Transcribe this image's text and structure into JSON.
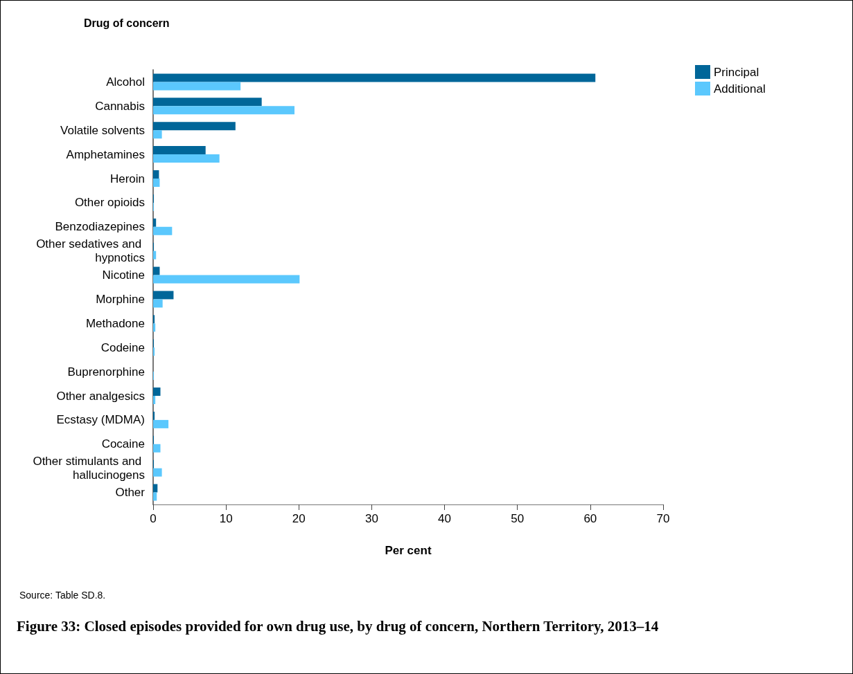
{
  "chart_data": {
    "type": "bar",
    "orientation": "horizontal",
    "title": "Figure 33: Closed episodes provided for own drug use, by drug of concern, Northern Territory, 2013–14",
    "ylabel": "Drug of concern",
    "xlabel": "Per cent",
    "categories": [
      "Alcohol",
      "Cannabis",
      "Volatile solvents",
      "Amphetamines",
      "Heroin",
      "Other opioids",
      "Benzodiazepines",
      "Other sedatives and hypnotics",
      "Nicotine",
      "Morphine",
      "Methadone",
      "Codeine",
      "Buprenorphine",
      "Other analgesics",
      "Ecstasy (MDMA)",
      "Cocaine",
      "Other stimulants and hallucinogens",
      "Other"
    ],
    "series": [
      {
        "name": "Principal",
        "color": "#006699",
        "values": [
          60.7,
          14.9,
          11.3,
          7.2,
          0.8,
          0.1,
          0.4,
          0.1,
          0.9,
          2.8,
          0.2,
          0.1,
          0,
          1.0,
          0.2,
          0.1,
          0.1,
          0.6
        ]
      },
      {
        "name": "Additional",
        "color": "#5bc8fd",
        "values": [
          12.0,
          19.4,
          1.2,
          9.1,
          0.9,
          0.1,
          2.6,
          0.4,
          20.1,
          1.3,
          0.3,
          0.2,
          0.1,
          0.3,
          2.1,
          1.0,
          1.2,
          0.5
        ]
      }
    ],
    "xlim": [
      0,
      70
    ],
    "xticks": [
      0,
      10,
      20,
      30,
      40,
      50,
      60,
      70
    ],
    "grid": false,
    "legend": "top right",
    "annotations": [
      "Source: Table SD.8."
    ]
  }
}
